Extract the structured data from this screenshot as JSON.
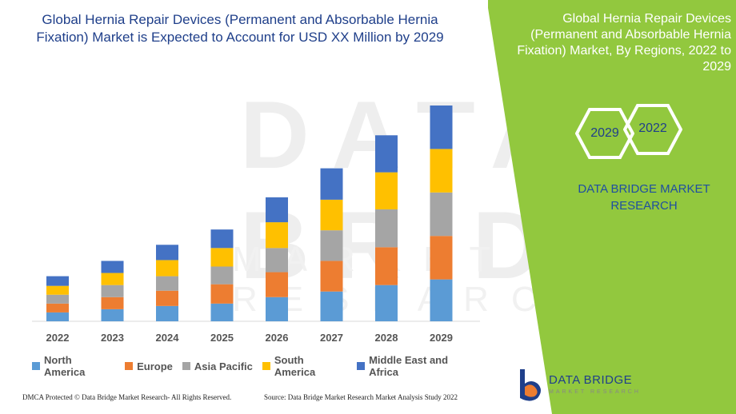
{
  "chart_data": {
    "type": "bar",
    "stacked": true,
    "title": "Global Hernia Repair Devices (Permanent and Absorbable Hernia Fixation) Market is Expected to Account for USD XX Million by 2029",
    "categories": [
      "2022",
      "2023",
      "2024",
      "2025",
      "2026",
      "2027",
      "2028",
      "2029"
    ],
    "series": [
      {
        "name": "North America",
        "color": "#5b9bd5",
        "values": [
          11,
          15,
          19,
          22,
          30,
          37,
          45,
          52
        ]
      },
      {
        "name": "Europe",
        "color": "#ed7d31",
        "values": [
          11,
          15,
          19,
          24,
          31,
          38,
          47,
          54
        ]
      },
      {
        "name": "Asia Pacific",
        "color": "#a5a5a5",
        "values": [
          11,
          15,
          18,
          22,
          30,
          38,
          47,
          54
        ]
      },
      {
        "name": "South America",
        "color": "#ffc000",
        "values": [
          11,
          15,
          20,
          23,
          32,
          38,
          46,
          54
        ]
      },
      {
        "name": "Middle East and Africa",
        "color": "#4472c4",
        "values": [
          12,
          15,
          19,
          23,
          31,
          39,
          46,
          54
        ]
      }
    ],
    "grid": false,
    "legend": "bottom"
  },
  "right_panel": {
    "title": "Global Hernia Repair Devices (Permanent and Absorbable Hernia Fixation) Market, By Regions, 2022 to 2029",
    "hex_top": "2022",
    "hex_bottom": "2029",
    "brand_line1": "DATA BRIDGE MARKET",
    "brand_line2": "RESEARCH",
    "bg_color": "#92c83e"
  },
  "watermark": {
    "text": "DATA BRIDGE",
    "sub": "MARKET RESEARCH"
  },
  "footer": {
    "left": "DMCA Protected © Data Bridge Market Research- All Rights Reserved.",
    "right": "Source: Data Bridge Market Research Market Analysis Study 2022"
  },
  "logo": {
    "name": "DATA BRIDGE",
    "sub": "MARKET RESEARCH"
  }
}
